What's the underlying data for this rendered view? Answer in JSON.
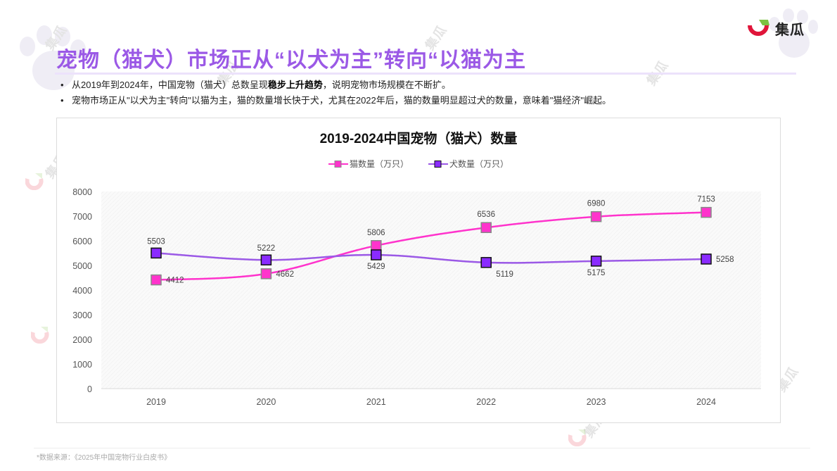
{
  "header": {
    "title": "宠物（猫犬）市场正从“以犬为主”转向“以猫为主",
    "brand": "集瓜",
    "title_color": "#9b59e6"
  },
  "bullets": [
    {
      "pre": "从2019年到2024年，中国宠物（猫犬）总数呈现",
      "bold": "稳步上升趋势",
      "post": "，说明宠物市场规模在不断扩。"
    },
    {
      "pre": "宠物市场正从\"以犬为主\"转向\"以猫为主，猫的数量增长快于犬，尤其在2022年后，猫的数量明显超过犬的数量，意味着\"猫经济\"崛起。",
      "bold": "",
      "post": ""
    }
  ],
  "footnote": "*数据来源：《2025年中国宠物行业白皮书》",
  "watermark_text": "集瓜",
  "chart_data": {
    "type": "line",
    "title": "2019-2024中国宠物（猫犬）数量",
    "xlabel": "",
    "ylabel": "",
    "categories": [
      "2019",
      "2020",
      "2021",
      "2022",
      "2023",
      "2024"
    ],
    "series": [
      {
        "name": "猫数量（万只）",
        "values": [
          4412,
          4662,
          5806,
          6536,
          6980,
          7153
        ],
        "color": "#ff33cc",
        "marker": "square"
      },
      {
        "name": "犬数量（万只）",
        "values": [
          5503,
          5222,
          5429,
          5119,
          5175,
          5258
        ],
        "color": "#9b59e6",
        "marker_fill": "#8a2bff",
        "marker": "square"
      }
    ],
    "yticks": [
      "0",
      "1000",
      "2000",
      "3000",
      "4000",
      "5000",
      "6000",
      "7000",
      "8000"
    ],
    "ylim": [
      0,
      8000
    ],
    "grid": false,
    "legend_position": "top",
    "smooth": true
  }
}
